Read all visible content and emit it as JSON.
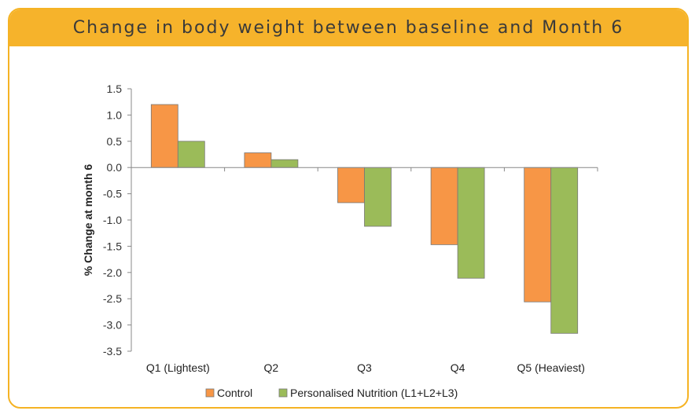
{
  "header": {
    "title": "Change in body weight between baseline and Month 6"
  },
  "chart_data": {
    "type": "bar",
    "title": "Change in body weight between baseline and Month 6",
    "xlabel": "",
    "ylabel": "% Change at month 6",
    "categories": [
      "Q1 (Lightest)",
      "Q2",
      "Q3",
      "Q4",
      "Q5 (Heaviest)"
    ],
    "series": [
      {
        "name": "Control",
        "color": "#f79646",
        "values": [
          1.2,
          0.28,
          -0.67,
          -1.47,
          -2.56
        ]
      },
      {
        "name": "Personalised Nutrition (L1+L2+L3)",
        "color": "#9bbb59",
        "values": [
          0.5,
          0.15,
          -1.12,
          -2.11,
          -3.16
        ]
      }
    ],
    "ylim": [
      -3.5,
      1.5
    ],
    "yticks": [
      1.5,
      1.0,
      0.5,
      0.0,
      -0.5,
      -1.0,
      -1.5,
      -2.0,
      -2.5,
      -3.0,
      -3.5
    ],
    "ytick_labels": [
      "1.5",
      "1.0",
      "0.5",
      "0.0",
      "-0.5",
      "-1.0",
      "-1.5",
      "-2.0",
      "-2.5",
      "-3.0",
      "-3.5"
    ],
    "grid": false,
    "legend": "bottom"
  }
}
